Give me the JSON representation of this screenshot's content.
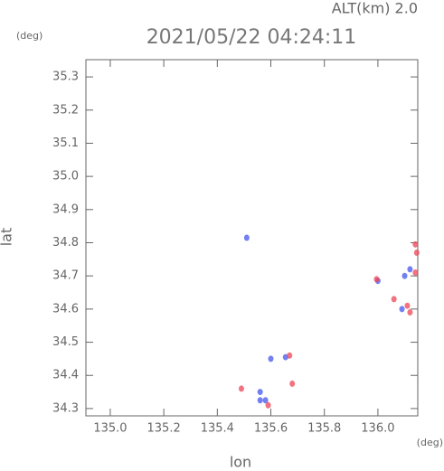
{
  "chart_data": {
    "type": "scatter",
    "title": "2021/05/22 04:24:11",
    "subtitle": "ALT(km) 2.0",
    "y_unit": "(deg)",
    "x_unit": "(deg)",
    "x_label": "lon",
    "y_label": "lat",
    "xlim": [
      134.909,
      136.149
    ],
    "ylim": [
      34.278,
      35.352
    ],
    "xticks": [
      {
        "value": 135,
        "label": "135.0"
      },
      135.2,
      135.4,
      135.6,
      135.8,
      {
        "value": 136,
        "label": "136.0"
      }
    ],
    "yticks": [
      34.3,
      34.4,
      34.5,
      34.6,
      34.7,
      34.8,
      34.9,
      {
        "value": 35,
        "label": "35.0"
      },
      35.1,
      35.2,
      35.3
    ],
    "series": [
      {
        "color": "#4455ee",
        "x": [
          135.51,
          135.6,
          135.655,
          135.56,
          135.58,
          135.56,
          136.0,
          136.09,
          136.12,
          136.1
        ],
        "y": [
          34.815,
          34.45,
          34.455,
          34.35,
          34.325,
          34.325,
          34.685,
          34.6,
          34.72,
          34.7
        ]
      },
      {
        "color": "#ee4455",
        "x": [
          135.49,
          135.67,
          135.68,
          136.11,
          136.12,
          136.145,
          136.14,
          136.06,
          135.995,
          136.14,
          135.59
        ],
        "y": [
          34.36,
          34.46,
          34.375,
          34.61,
          34.59,
          34.77,
          34.795,
          34.63,
          34.69,
          34.71,
          34.31
        ]
      }
    ]
  }
}
